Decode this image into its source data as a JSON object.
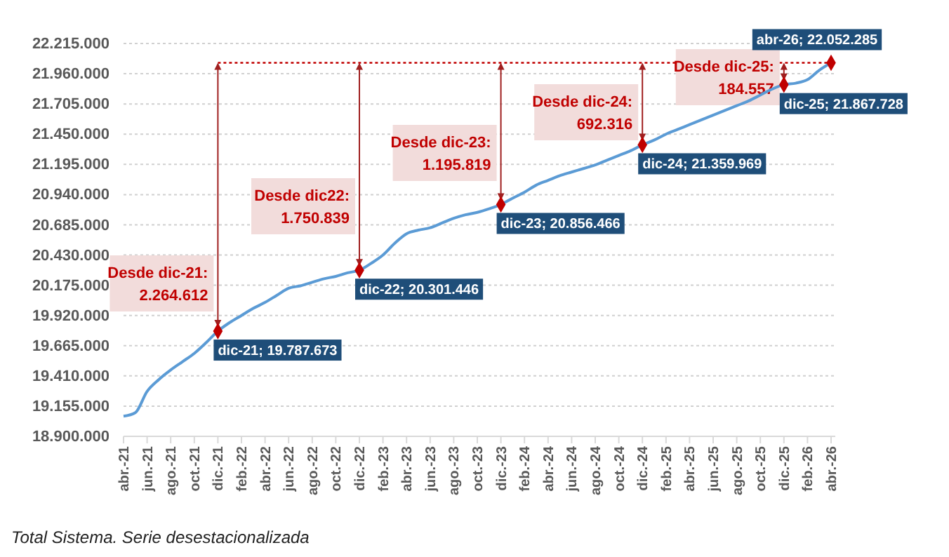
{
  "chart_data": {
    "type": "line",
    "categories": [
      "abr.-21",
      null,
      "jun.-21",
      null,
      "ago.-21",
      null,
      "oct.-21",
      null,
      "dic.-21",
      null,
      "feb.-22",
      null,
      "abr.-22",
      null,
      "jun.-22",
      null,
      "ago.-22",
      null,
      "oct.-22",
      null,
      "dic.-22",
      null,
      "feb.-23",
      null,
      "abr.-23",
      null,
      "jun.-23",
      null,
      "ago.-23",
      null,
      "oct.-23",
      null,
      "dic.-23",
      null,
      "feb.-24",
      null,
      "abr.-24",
      null,
      "jun.-24",
      null,
      "ago.-24",
      null,
      "oct.-24",
      null,
      "dic.-24",
      null,
      "feb.-25",
      null,
      "abr.-25",
      null,
      "jun.-25",
      null,
      "ago.-25",
      null,
      "oct.-25",
      null,
      "dic.-25",
      null,
      "feb.-26",
      null,
      "abr.-26"
    ],
    "series": [
      {
        "color": "#5b9bd5",
        "values": [
          19070000,
          19100000,
          19280000,
          19380000,
          19460000,
          19530000,
          19600000,
          19690000,
          19787673,
          19860000,
          19920000,
          19980000,
          20030000,
          20090000,
          20150000,
          20170000,
          20200000,
          20230000,
          20250000,
          20280000,
          20301446,
          20360000,
          20430000,
          20530000,
          20610000,
          20640000,
          20660000,
          20700000,
          20740000,
          20770000,
          20790000,
          20820000,
          20856466,
          20910000,
          20960000,
          21020000,
          21060000,
          21100000,
          21130000,
          21160000,
          21190000,
          21230000,
          21270000,
          21310000,
          21359969,
          21400000,
          21450000,
          21490000,
          21530000,
          21570000,
          21610000,
          21650000,
          21690000,
          21730000,
          21780000,
          21830000,
          21867728,
          21880000,
          21910000,
          21990000,
          22052285
        ]
      },
      {
        "type": "scatter",
        "marker": "diamond",
        "color": "#c00000",
        "x": [
          "dic.-21",
          "dic.-22",
          "dic.-23",
          "dic.-24",
          "dic.-25",
          "abr.-26"
        ],
        "values": [
          19787673,
          20301446,
          20856466,
          21359969,
          21867728,
          22052285
        ]
      }
    ],
    "ylim": [
      18900000,
      22215000
    ],
    "yticks": [
      {
        "value": 18900000,
        "label": "18.900.000"
      },
      {
        "value": 19155000,
        "label": "19.155.000"
      },
      {
        "value": 19410000,
        "label": "19.410.000"
      },
      {
        "value": 19665000,
        "label": "19.665.000"
      },
      {
        "value": 19920000,
        "label": "19.920.000"
      },
      {
        "value": 20175000,
        "label": "20.175.000"
      },
      {
        "value": 20430000,
        "label": "20.430.000"
      },
      {
        "value": 20685000,
        "label": "20.685.000"
      },
      {
        "value": 20940000,
        "label": "20.940.000"
      },
      {
        "value": 21195000,
        "label": "21.195.000"
      },
      {
        "value": 21450000,
        "label": "21.450.000"
      },
      {
        "value": 21705000,
        "label": "21.705.000"
      },
      {
        "value": 21960000,
        "label": "21.960.000"
      },
      {
        "value": 22215000,
        "label": "22.215.000"
      }
    ],
    "grid": "y",
    "ref_lines": [
      {
        "axis": "y",
        "value": 22052285,
        "color": "#c00000",
        "line_style": "dotted"
      }
    ],
    "annotations": [
      {
        "text": "dic-21; 19.787.673",
        "x": "dic.-21",
        "y": 19787673
      },
      {
        "text": "dic-22; 20.301.446",
        "x": "dic.-22",
        "y": 20301446
      },
      {
        "text": "dic-23; 20.856.466",
        "x": "dic.-23",
        "y": 20856466
      },
      {
        "text": "dic-24; 21.359.969",
        "x": "dic.-24",
        "y": 21359969
      },
      {
        "text": "dic-25; 21.867.728",
        "x": "dic.-25",
        "y": 21867728
      },
      {
        "text": "abr-26; 22.052.285",
        "x": "abr.-26",
        "y": 22052285
      },
      {
        "text": "Desde dic-21:\n2.264.612",
        "x": "dic.-21",
        "y": 19787673
      },
      {
        "text": "Desde dic22:\n1.750.839",
        "x": "dic.-22",
        "y": 20301446
      },
      {
        "text": "Desde dic-23:\n1.195.819",
        "x": "dic.-23",
        "y": 20856466
      },
      {
        "text": "Desde dic-24:\n692.316",
        "x": "dic.-24",
        "y": 21359969
      },
      {
        "text": "Desde dic-25:\n184.557",
        "x": "dic.-25",
        "y": 21867728
      },
      "Total Sistema. Serie desestacionalizada"
    ]
  }
}
